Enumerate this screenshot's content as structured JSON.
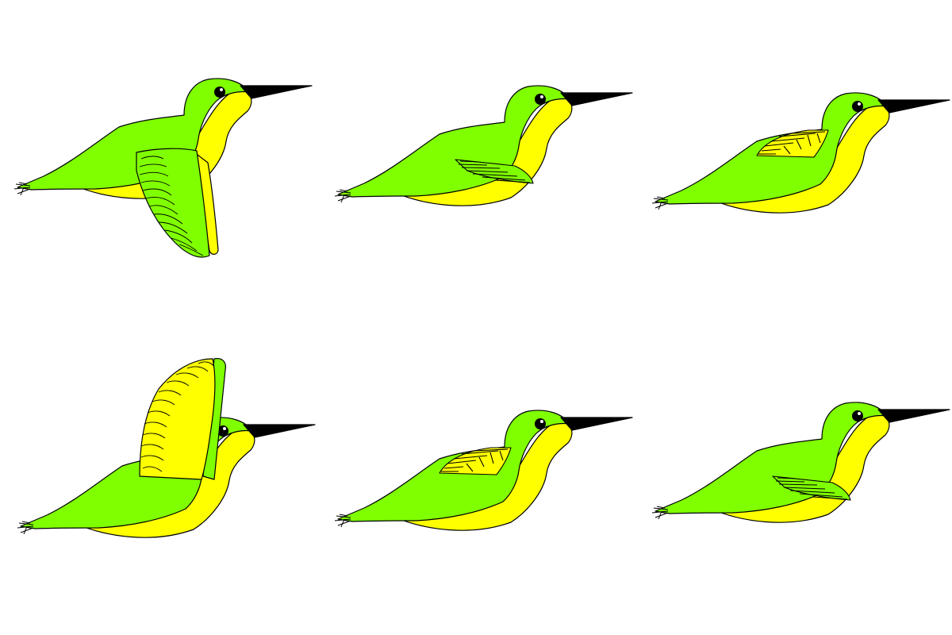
{
  "sprite_sheet": {
    "columns": 3,
    "rows": 2,
    "colors": {
      "background": "#ffffff",
      "body_green": "#80ff00",
      "belly_yellow": "#ffff00",
      "outline": "#000000",
      "beak": "#000000"
    },
    "frames": [
      {
        "id": 1,
        "wing_pose": "down-extended",
        "wing_icon": "wing-down-icon"
      },
      {
        "id": 2,
        "wing_pose": "folded-low",
        "wing_icon": "wing-folded-icon"
      },
      {
        "id": 3,
        "wing_pose": "folded-high",
        "wing_icon": "wing-folded-icon"
      },
      {
        "id": 4,
        "wing_pose": "up-extended",
        "wing_icon": "wing-up-icon"
      },
      {
        "id": 5,
        "wing_pose": "folded-high",
        "wing_icon": "wing-folded-icon"
      },
      {
        "id": 6,
        "wing_pose": "folded-low",
        "wing_icon": "wing-folded-icon"
      }
    ]
  }
}
